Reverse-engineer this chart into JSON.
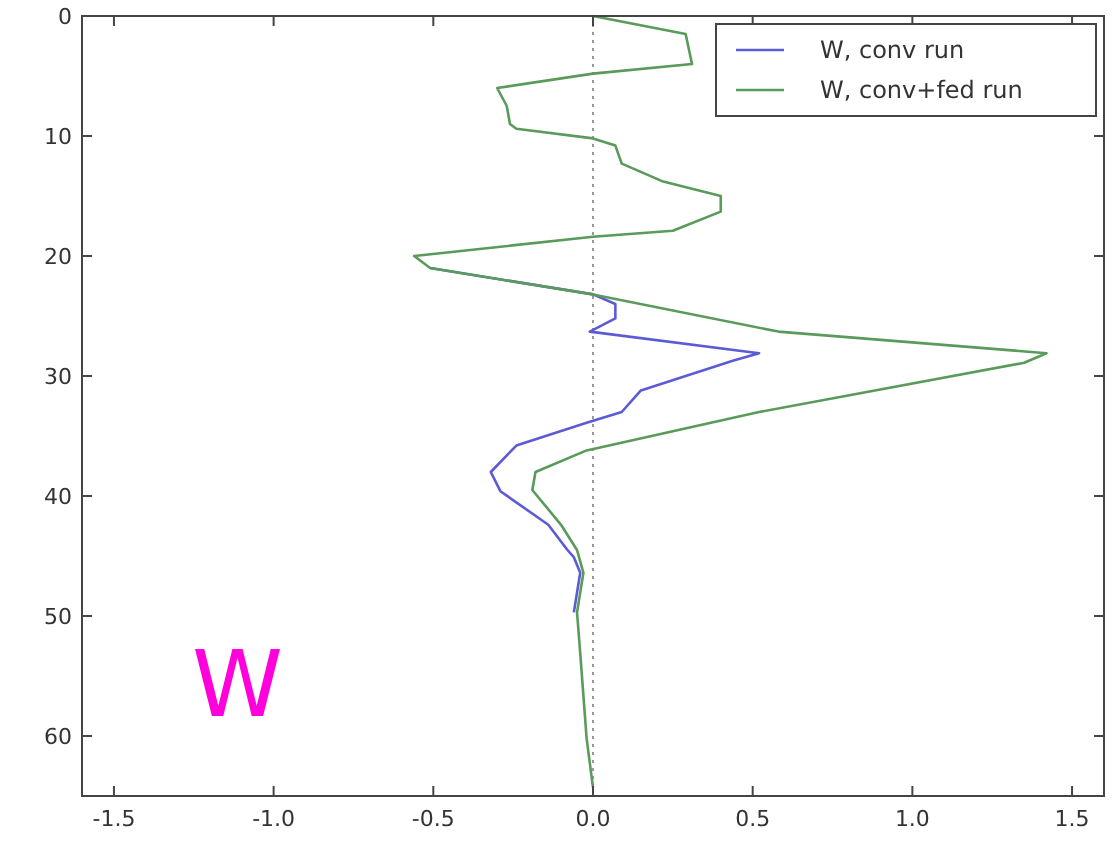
{
  "chart_data": {
    "type": "line",
    "xlim": [
      -1.6,
      1.6
    ],
    "xticks": [
      {
        "value": -1.5,
        "label": "-1.5"
      },
      {
        "value": -1,
        "label": "-1.0"
      },
      {
        "value": -0.5,
        "label": "-0.5"
      },
      {
        "value": 0,
        "label": "0.0"
      },
      {
        "value": 0.5,
        "label": "0.5"
      },
      {
        "value": 1,
        "label": "1.0"
      },
      {
        "value": 1.5,
        "label": "1.5"
      }
    ],
    "ylim": [
      65,
      0
    ],
    "yticks": [
      0,
      10,
      20,
      30,
      40,
      50,
      60
    ],
    "series": [
      {
        "name": "W, conv run",
        "color": "#5b5bd6",
        "x": [
          -0.51,
          0,
          0.07,
          0.07,
          -0.01,
          0.52,
          0.44,
          0.15,
          0.09,
          -0.02,
          -0.24,
          -0.32,
          -0.29,
          -0.14,
          -0.08,
          -0.06,
          -0.04,
          -0.06
        ],
        "values": [
          21,
          23.2,
          24,
          25.2,
          26.3,
          28.1,
          28.7,
          31.2,
          33,
          33.9,
          35.8,
          38,
          39.6,
          42.4,
          44.5,
          45.1,
          46.4,
          49.7
        ]
      },
      {
        "name": "W, conv+fed run",
        "color": "#5a9a5a",
        "x": [
          0,
          0.29,
          0.31,
          0,
          -0.3,
          -0.27,
          -0.26,
          -0.24,
          0,
          0.07,
          0.09,
          0.22,
          0.4,
          0.4,
          0.25,
          0,
          -0.56,
          -0.51,
          0,
          0.58,
          1.42,
          1.35,
          0.52,
          -0.02,
          -0.18,
          -0.19,
          -0.1,
          -0.05,
          -0.03,
          -0.05,
          -0.04,
          -0.02,
          0
        ],
        "values": [
          0,
          1.5,
          4,
          4.8,
          6,
          7.5,
          9,
          9.4,
          10.2,
          10.8,
          12.3,
          13.8,
          15,
          16.3,
          17.9,
          18.4,
          20,
          21,
          23.2,
          26.3,
          28.1,
          28.9,
          33,
          36.2,
          38,
          39.5,
          42.4,
          44.5,
          46.4,
          49.7,
          53.1,
          60.2,
          64.3
        ]
      }
    ],
    "ref_lines": [
      {
        "axis": "x",
        "value": 0,
        "color": "#999999",
        "line_style": "dotted"
      }
    ],
    "annotations": [
      "W"
    ],
    "legend": "top right",
    "grid": false
  }
}
